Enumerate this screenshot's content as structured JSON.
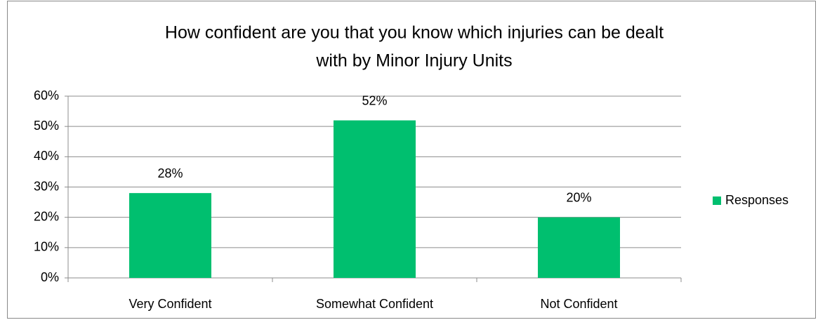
{
  "chart_data": {
    "type": "bar",
    "title": [
      "How confident are you that you know which injuries can be dealt",
      "with by Minor Injury Units"
    ],
    "categories": [
      "Very Confident",
      "Somewhat Confident",
      "Not Confident"
    ],
    "series": [
      {
        "name": "Responses",
        "color": "#00bf6f",
        "values": [
          28,
          52,
          20
        ],
        "value_labels": [
          "28%",
          "52%",
          "20%"
        ]
      }
    ],
    "ylim": [
      0,
      60
    ],
    "yticks": [
      {
        "value": 0,
        "label": "0%"
      },
      {
        "value": 10,
        "label": "10%"
      },
      {
        "value": 20,
        "label": "20%"
      },
      {
        "value": 30,
        "label": "30%"
      },
      {
        "value": 40,
        "label": "40%"
      },
      {
        "value": 50,
        "label": "50%"
      },
      {
        "value": 60,
        "label": "60%"
      }
    ],
    "grid": true,
    "legend": "right"
  }
}
